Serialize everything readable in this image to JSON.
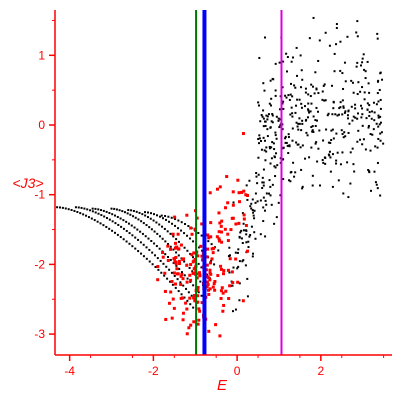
{
  "chart_data": {
    "type": "scatter",
    "xlabel": "E",
    "ylabel": "<J3>",
    "xlim": [
      -4.35,
      3.7
    ],
    "ylim": [
      -3.3,
      1.65
    ],
    "xticks": [
      -4,
      -2,
      0,
      2
    ],
    "yticks": [
      1,
      0,
      -1,
      -2,
      -3
    ],
    "grid": false,
    "colors": {
      "axis": "#ff0000",
      "black_points": "#000000",
      "red_points": "#ff0000",
      "vline_green": "#007700",
      "vline_blue": "#0000ff",
      "vline_magenta": "#dd00dd"
    },
    "vlines": [
      {
        "x": -0.98,
        "color": "#007700",
        "weight": "thin"
      },
      {
        "x": -0.78,
        "color": "#0000ff",
        "weight": "thick"
      },
      {
        "x": 1.06,
        "color": "#dd00dd",
        "weight": "thin"
      }
    ],
    "black_bands": [
      {
        "x0": -4.3,
        "x1": -1.05,
        "y0": -1.18,
        "y1": -2.62,
        "n": 48
      },
      {
        "x0": -3.85,
        "x1": -0.95,
        "y0": -1.18,
        "y1": -2.55,
        "n": 44
      },
      {
        "x0": -3.45,
        "x1": -0.85,
        "y0": -1.2,
        "y1": -2.45,
        "n": 40
      },
      {
        "x0": -3.0,
        "x1": -0.75,
        "y0": -1.2,
        "y1": -2.35,
        "n": 36
      },
      {
        "x0": -2.6,
        "x1": -0.65,
        "y0": -1.22,
        "y1": -2.2,
        "n": 30
      },
      {
        "x0": -2.2,
        "x1": -0.55,
        "y0": -1.25,
        "y1": -2.0,
        "n": 24
      },
      {
        "x0": -1.8,
        "x1": -0.45,
        "y0": -1.3,
        "y1": -1.8,
        "n": 18
      }
    ],
    "black_transition": {
      "x0": -0.2,
      "x1": 1.1,
      "y0": -2.2,
      "y1": -0.3,
      "n": 110
    },
    "black_cloud": {
      "x0": 0.5,
      "x1": 3.5,
      "y0": -1.2,
      "y1": 1.6,
      "n": 380
    },
    "red_cluster": {
      "x": -0.95,
      "y": -2.2,
      "sx": 0.45,
      "sy": 0.35,
      "n": 150
    },
    "red_spread": {
      "x0": -1.5,
      "x1": 0.3,
      "y0": -2.8,
      "y1": -1.0,
      "n": 60
    },
    "seed": 20240521
  }
}
